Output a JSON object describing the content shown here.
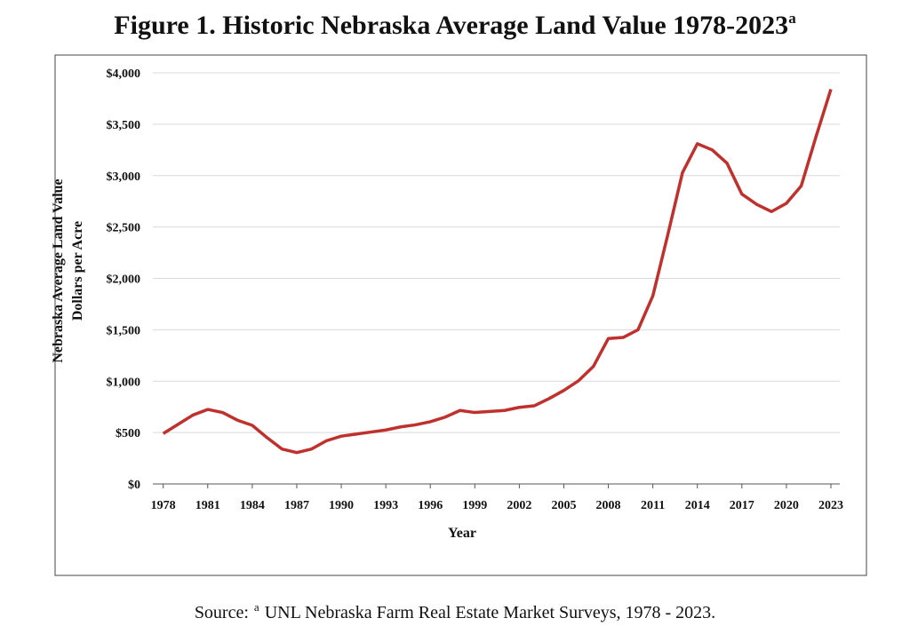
{
  "chart_data": {
    "type": "line",
    "title": "Figure 1. Historic Nebraska Average Land Value 1978-2023",
    "title_superscript": "a",
    "y_label": [
      "Nebraska  Average Land Value",
      "Dollars per Acre"
    ],
    "x_label": "Year",
    "source_label": "Source:",
    "source_superscript": "a",
    "source": "UNL Nebraska Farm Real Estate Market Surveys, 1978 - 2023.",
    "x": [
      1978,
      1979,
      1980,
      1981,
      1982,
      1983,
      1984,
      1985,
      1986,
      1987,
      1988,
      1989,
      1990,
      1991,
      1992,
      1993,
      1994,
      1995,
      1996,
      1997,
      1998,
      1999,
      2000,
      2001,
      2002,
      2003,
      2004,
      2005,
      2006,
      2007,
      2008,
      2009,
      2010,
      2011,
      2012,
      2013,
      2014,
      2015,
      2016,
      2017,
      2018,
      2019,
      2020,
      2021,
      2022,
      2023
    ],
    "values": [
      490,
      580,
      670,
      725,
      695,
      620,
      570,
      450,
      340,
      305,
      340,
      420,
      465,
      485,
      505,
      525,
      555,
      575,
      605,
      650,
      715,
      695,
      705,
      715,
      745,
      760,
      830,
      910,
      1005,
      1145,
      1415,
      1425,
      1500,
      1830,
      2420,
      3030,
      3310,
      3250,
      3120,
      2820,
      2720,
      2650,
      2730,
      2900,
      3380,
      3840
    ],
    "color": "#c0302c",
    "xlim": [
      1977.3,
      2023.6
    ],
    "xticks": [
      1978,
      1981,
      1984,
      1987,
      1990,
      1993,
      1996,
      1999,
      2002,
      2005,
      2008,
      2011,
      2014,
      2017,
      2020,
      2023
    ],
    "ylim": [
      0,
      4000
    ],
    "yticks": [
      {
        "value": 0,
        "label": "$0"
      },
      {
        "value": 500,
        "label": "$500"
      },
      {
        "value": 1000,
        "label": "$1,000"
      },
      {
        "value": 1500,
        "label": "$1,500"
      },
      {
        "value": 2000,
        "label": "$2,000"
      },
      {
        "value": 2500,
        "label": "$2,500"
      },
      {
        "value": 3000,
        "label": "$3,000"
      },
      {
        "value": 3500,
        "label": "$3,500"
      },
      {
        "value": 4000,
        "label": "$4,000"
      }
    ],
    "grid": true
  }
}
